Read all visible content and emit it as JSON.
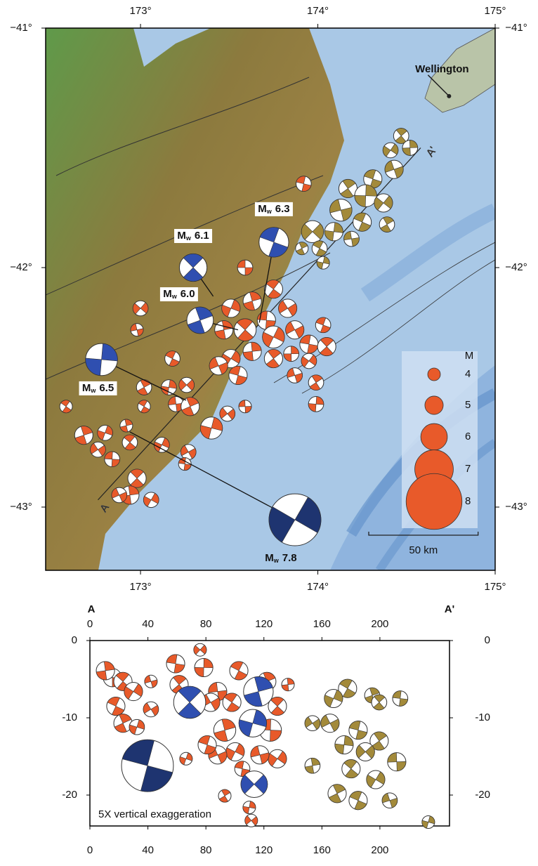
{
  "map": {
    "xlim": [
      172.465,
      175
    ],
    "ylim": [
      -41,
      -43.264
    ],
    "xticks": [
      {
        "value": 173,
        "label": "173°"
      },
      {
        "value": 174,
        "label": "174°"
      },
      {
        "value": 175,
        "label": "175°"
      }
    ],
    "yticks": [
      {
        "value": -41,
        "label": "−41°"
      },
      {
        "value": -42,
        "label": "−42°"
      },
      {
        "value": -43,
        "label": "−43°"
      }
    ],
    "magnitude_symbol": "M",
    "magnitude_subscript": "w",
    "city": {
      "name": "Wellington",
      "lon": 174.74,
      "lat": -41.284
    },
    "profile": {
      "start": {
        "label": "A",
        "lon": 172.76,
        "lat": -42.97
      },
      "end": {
        "label": "A'",
        "lon": 174.58,
        "lat": -41.5
      }
    },
    "scale_bar": {
      "km": 50,
      "label": "50 km"
    },
    "legend": {
      "title": "M",
      "values": [
        4,
        5,
        6,
        7,
        8
      ],
      "color": "#e85a2a"
    },
    "major_events": [
      {
        "label": "6.3",
        "mag": 6.3,
        "lon": 173.752,
        "lat": -41.894,
        "epicenter_lon": 173.67,
        "epicenter_lat": -42.23,
        "color": "#2f4fb0"
      },
      {
        "label": "6.1",
        "mag": 6.1,
        "lon": 173.297,
        "lat": -42.0,
        "epicenter_lon": 173.41,
        "epicenter_lat": -42.12,
        "color": "#2f4fb0"
      },
      {
        "label": "6.0",
        "mag": 6.0,
        "lon": 173.336,
        "lat": -42.22,
        "epicenter_lon": 173.55,
        "epicenter_lat": -42.26,
        "color": "#2f4fb0"
      },
      {
        "label": "6.5",
        "mag": 6.5,
        "lon": 172.78,
        "lat": -42.384,
        "epicenter_lon": 173.257,
        "epicenter_lat": -42.554,
        "color": "#2f4fb0"
      },
      {
        "label": "7.8",
        "mag": 7.8,
        "lon": 173.871,
        "lat": -43.053,
        "epicenter_lon": 172.94,
        "epicenter_lat": -42.686,
        "color": "#1e3470"
      }
    ],
    "event_groups": [
      {
        "color": "#e85a2a",
        "events": [
          [
            173.59,
            -42.0,
            4.5
          ],
          [
            173.75,
            -42.09,
            5
          ],
          [
            173.63,
            -42.14,
            5
          ],
          [
            173.51,
            -42.17,
            5
          ],
          [
            173.83,
            -42.17,
            5
          ],
          [
            173.71,
            -42.22,
            5
          ],
          [
            173.59,
            -42.26,
            5.5
          ],
          [
            173.47,
            -42.26,
            5
          ],
          [
            173.75,
            -42.29,
            5.5
          ],
          [
            173.87,
            -42.26,
            5
          ],
          [
            173.95,
            -42.32,
            5
          ],
          [
            174.05,
            -42.33,
            5
          ],
          [
            173.63,
            -42.35,
            5
          ],
          [
            173.51,
            -42.38,
            5
          ],
          [
            173.44,
            -42.41,
            5
          ],
          [
            173.55,
            -42.45,
            5
          ],
          [
            173.75,
            -42.38,
            5
          ],
          [
            173.85,
            -42.36,
            4.5
          ],
          [
            173.95,
            -42.39,
            4.5
          ],
          [
            173.87,
            -42.45,
            4.5
          ],
          [
            174.03,
            -42.24,
            4.5
          ],
          [
            173.99,
            -42.48,
            4.5
          ],
          [
            173.99,
            -42.57,
            4.5
          ],
          [
            173.0,
            -42.17,
            4.5
          ],
          [
            172.98,
            -42.26,
            4
          ],
          [
            173.18,
            -42.38,
            4.5
          ],
          [
            173.02,
            -42.5,
            4.5
          ],
          [
            173.16,
            -42.5,
            4.5
          ],
          [
            173.26,
            -42.49,
            4.5
          ],
          [
            173.2,
            -42.57,
            4.5
          ],
          [
            173.02,
            -42.58,
            4
          ],
          [
            173.28,
            -42.58,
            5
          ],
          [
            173.4,
            -42.67,
            5.5
          ],
          [
            173.49,
            -42.61,
            4.5
          ],
          [
            173.59,
            -42.58,
            4
          ],
          [
            172.58,
            -42.58,
            4
          ],
          [
            172.68,
            -42.7,
            5
          ],
          [
            172.8,
            -42.69,
            4.5
          ],
          [
            172.76,
            -42.76,
            4.5
          ],
          [
            172.84,
            -42.8,
            4.5
          ],
          [
            172.94,
            -42.73,
            4.5
          ],
          [
            172.92,
            -42.66,
            4
          ],
          [
            173.12,
            -42.74,
            4.5
          ],
          [
            173.27,
            -42.77,
            4.5
          ],
          [
            173.25,
            -42.82,
            4
          ],
          [
            172.98,
            -42.88,
            5
          ],
          [
            172.94,
            -42.95,
            5
          ],
          [
            173.06,
            -42.97,
            4.5
          ],
          [
            172.88,
            -42.95,
            4.5
          ],
          [
            173.92,
            -41.65,
            4.5
          ]
        ]
      },
      {
        "color": "#a38a3a",
        "events": [
          [
            174.47,
            -41.45,
            4.5
          ],
          [
            174.52,
            -41.5,
            4.5
          ],
          [
            174.41,
            -41.51,
            4.5
          ],
          [
            174.43,
            -41.59,
            5
          ],
          [
            174.31,
            -41.63,
            5
          ],
          [
            174.17,
            -41.67,
            5
          ],
          [
            174.27,
            -41.7,
            5.5
          ],
          [
            174.37,
            -41.73,
            5
          ],
          [
            174.13,
            -41.76,
            5.5
          ],
          [
            174.25,
            -41.81,
            5
          ],
          [
            174.39,
            -41.82,
            4.5
          ],
          [
            174.09,
            -41.85,
            5
          ],
          [
            173.97,
            -41.85,
            5.5
          ],
          [
            174.19,
            -41.88,
            4.5
          ],
          [
            174.01,
            -41.92,
            4.5
          ],
          [
            173.91,
            -41.92,
            4
          ],
          [
            174.03,
            -41.98,
            4
          ]
        ]
      }
    ]
  },
  "section": {
    "xlim": [
      0,
      248
    ],
    "ylim": [
      0,
      -24
    ],
    "xticks": [
      0,
      40,
      80,
      120,
      160,
      200
    ],
    "yticks": [
      0,
      -10,
      -20
    ],
    "note": "5X vertical exaggeration",
    "major_events": [
      {
        "distance": 39.7,
        "depth": -16.2,
        "mag": 7.8,
        "color": "#1e3470"
      },
      {
        "distance": 68.8,
        "depth": -8.0,
        "mag": 6.5,
        "color": "#2f4fb0"
      },
      {
        "distance": 116.2,
        "depth": -6.6,
        "mag": 6.3,
        "color": "#2f4fb0"
      },
      {
        "distance": 112.3,
        "depth": -10.7,
        "mag": 6.1,
        "color": "#2f4fb0"
      },
      {
        "distance": 113.3,
        "depth": -18.6,
        "mag": 6.0,
        "color": "#2f4fb0"
      }
    ],
    "event_groups": [
      {
        "color": "#e85a2a",
        "events": [
          [
            15.5,
            -4.8,
            5
          ],
          [
            22.8,
            -5.3,
            5
          ],
          [
            10.7,
            -3.9,
            5
          ],
          [
            30,
            -6.6,
            5
          ],
          [
            42.1,
            -5.3,
            4
          ],
          [
            17.9,
            -8.5,
            5
          ],
          [
            22.8,
            -10.7,
            5
          ],
          [
            32.4,
            -11.2,
            4.5
          ],
          [
            42.1,
            -8.9,
            4.5
          ],
          [
            59.1,
            -3.0,
            5
          ],
          [
            61.5,
            -5.7,
            5
          ],
          [
            78.5,
            -3.5,
            5
          ],
          [
            76,
            -1.2,
            4
          ],
          [
            88.1,
            -6.6,
            5
          ],
          [
            97.9,
            -8,
            5
          ],
          [
            93,
            -11.6,
            5.5
          ],
          [
            100.2,
            -14.4,
            5
          ],
          [
            88.1,
            -14.8,
            5
          ],
          [
            80.9,
            -13.5,
            5
          ],
          [
            93,
            -20.1,
            4
          ],
          [
            109.9,
            -21.6,
            4
          ],
          [
            111.3,
            -23.3,
            4
          ],
          [
            124.5,
            -11.6,
            5.5
          ],
          [
            129.3,
            -8.5,
            5
          ],
          [
            136.6,
            -5.7,
            4
          ],
          [
            129.3,
            -15.3,
            5
          ],
          [
            117.2,
            -14.8,
            5
          ],
          [
            102.7,
            -3.9,
            5
          ],
          [
            122,
            -5.3,
            5
          ],
          [
            66.3,
            -15.3,
            4
          ],
          [
            83.3,
            -8,
            5
          ],
          [
            105.1,
            -16.6,
            4.5
          ]
        ]
      },
      {
        "color": "#a38a3a",
        "events": [
          [
            177.7,
            -6.2,
            5
          ],
          [
            194.7,
            -7.1,
            4.5
          ],
          [
            168,
            -7.5,
            5
          ],
          [
            165.6,
            -10.7,
            5
          ],
          [
            185,
            -11.6,
            5
          ],
          [
            199.5,
            -13.0,
            5
          ],
          [
            175.3,
            -13.5,
            5
          ],
          [
            190,
            -14.4,
            5
          ],
          [
            211.6,
            -15.7,
            5
          ],
          [
            180.1,
            -16.6,
            5
          ],
          [
            153.5,
            -16.2,
            4.5
          ],
          [
            197.1,
            -18,
            5
          ],
          [
            206.8,
            -20.7,
            4.5
          ],
          [
            185,
            -20.7,
            5
          ],
          [
            170.5,
            -19.8,
            5
          ],
          [
            233.4,
            -23.5,
            4
          ],
          [
            153.5,
            -10.7,
            4.5
          ],
          [
            214,
            -7.5,
            4.5
          ],
          [
            199.5,
            -8,
            4.5
          ]
        ]
      }
    ]
  }
}
